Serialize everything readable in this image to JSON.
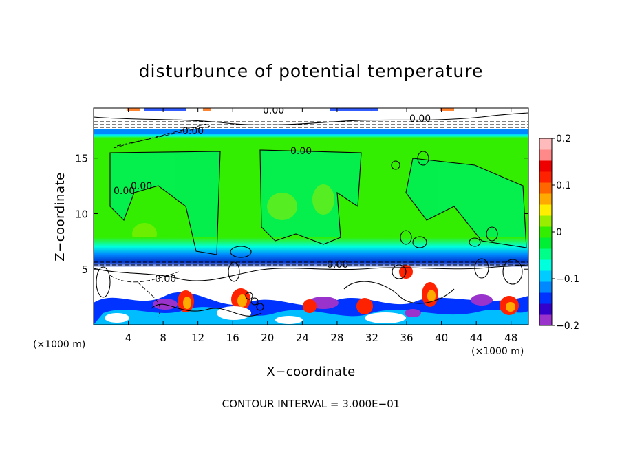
{
  "chart_data": {
    "type": "heatmap",
    "title": "disturbunce of potential temperature",
    "xlabel": "X−coordinate",
    "ylabel": "Z−coordinate",
    "x_unit": "(×1000 m)",
    "z_unit": "(×1000 m)",
    "xlim": [
      0,
      50
    ],
    "ylim": [
      0,
      19.5
    ],
    "x_ticks": [
      4,
      8,
      12,
      16,
      20,
      24,
      28,
      32,
      36,
      40,
      44,
      48
    ],
    "y_ticks": [
      5,
      10,
      15
    ],
    "colorbar": {
      "range": [
        -0.2,
        0.2
      ],
      "ticks": [
        {
          "value": 0.2,
          "label": "0.2"
        },
        {
          "value": 0.1,
          "label": "0.1"
        },
        {
          "value": 0.0,
          "label": "0"
        },
        {
          "value": -0.1,
          "label": "−0.1"
        },
        {
          "value": -0.2,
          "label": "−0.2"
        }
      ],
      "colors": [
        "#9933cc",
        "#3300cc",
        "#0033ff",
        "#0088ff",
        "#00ccff",
        "#00ffdd",
        "#00ff88",
        "#00ee33",
        "#33ee00",
        "#99ee00",
        "#ffee00",
        "#ffaa00",
        "#ff6600",
        "#ff2200",
        "#ee0000",
        "#ff8888",
        "#ffbbbb"
      ]
    },
    "contour_labels": [
      "0.00",
      "0.00",
      "0.00",
      "0.00",
      "0.00",
      "0.00",
      "0.00",
      "0.00"
    ],
    "footer": "CONTOUR INTERVAL = 3.000E−01",
    "grid": false
  }
}
